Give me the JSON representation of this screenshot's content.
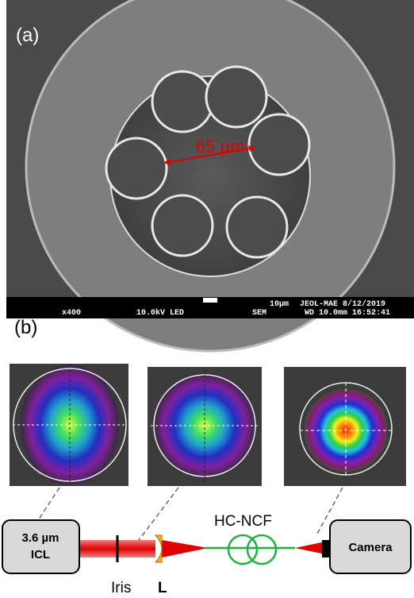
{
  "panel_a": {
    "label": "(a)",
    "scale_annotation": "65 µm",
    "info_bar": {
      "magnification": "x400",
      "voltage": "10.0kV LED",
      "scale": "10µm",
      "mode": "SEM",
      "instrument": "JEOL-MAE 8/12/2019",
      "details": "WD 10.0mm 16:52:41"
    }
  },
  "panel_b": {
    "label": "(b)",
    "source": [
      "3.6 µm",
      "ICL"
    ],
    "iris": "Iris",
    "lens": "L",
    "fiber": "HC-NCF",
    "camera": "Camera"
  }
}
